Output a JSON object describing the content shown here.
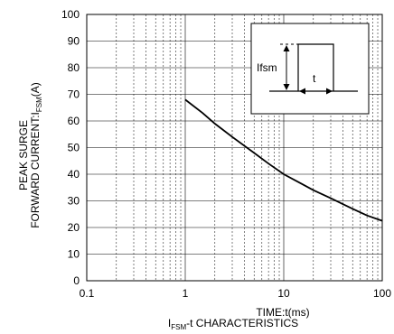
{
  "chart_data": {
    "type": "line",
    "x_scale": "log",
    "xlim": [
      0.1,
      100
    ],
    "ylim": [
      0,
      100
    ],
    "x_ticks": [
      "0.1",
      "1",
      "10",
      "100"
    ],
    "y_ticks": [
      "0",
      "10",
      "20",
      "30",
      "40",
      "50",
      "60",
      "70",
      "80",
      "90",
      "100"
    ],
    "xlabel": "TIME:t(ms)",
    "ylabel_line1": "PEAK SURGE",
    "ylabel_line2_main": "FORWARD CURRENT:I",
    "ylabel_line2_sub": "FSM",
    "ylabel_line2_end": "(A)",
    "caption_main": "I",
    "caption_sub": "FSM",
    "caption_end": "-t CHARACTERISTICS",
    "grid": true,
    "series": [
      {
        "x": [
          1,
          1.5,
          2,
          3,
          5,
          7,
          10,
          15,
          20,
          30,
          50,
          70,
          100
        ],
        "y": [
          68,
          63,
          59,
          54,
          48,
          44,
          40,
          36.5,
          34,
          31,
          27,
          24.5,
          22.5
        ]
      }
    ],
    "inset": {
      "amplitude_label": "Ifsm",
      "width_label": "t"
    }
  }
}
